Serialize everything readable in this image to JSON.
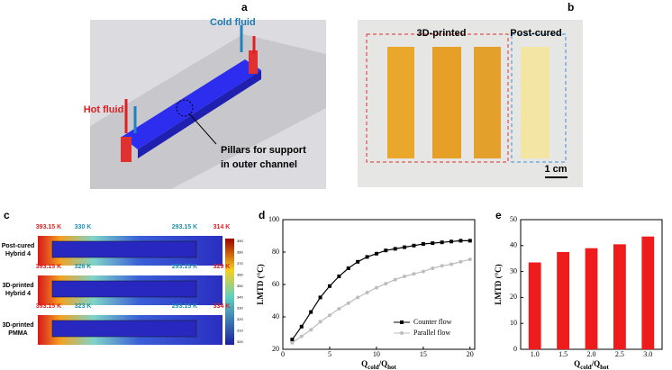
{
  "panel_labels": [
    "a",
    "b",
    "c",
    "d",
    "e"
  ],
  "panel_a": {
    "cold": "Cold fluid",
    "hot": "Hot fluid",
    "pillars": [
      "Pillars for support",
      "in outer channel"
    ]
  },
  "panel_b": {
    "printed": "3D-printed",
    "cured": "Post-cured",
    "scale": "1 cm"
  },
  "panel_c": {
    "rows": [
      {
        "label": [
          "Post-cured",
          "Hybrid 4"
        ],
        "temps": [
          "393.15 K",
          "330 K",
          "293.15 K",
          "314 K"
        ]
      },
      {
        "label": [
          "3D-printed",
          "Hybrid 4"
        ],
        "temps": [
          "393.15 K",
          "326 K",
          "293.15 K",
          "329 K"
        ]
      },
      {
        "label": [
          "3D-printed",
          "PMMA"
        ],
        "temps": [
          "393.15 K",
          "323 K",
          "293.15 K",
          "334 K"
        ]
      }
    ],
    "colorbar_ticks": [
      390,
      380,
      370,
      360,
      350,
      340,
      330,
      320,
      310,
      300
    ]
  },
  "chart_data": [
    {
      "type": "line",
      "ylabel": "LMTD (°C)",
      "xlabel": [
        "Q",
        "cold",
        "/Q",
        "hot"
      ],
      "x": [
        1,
        2,
        3,
        4,
        5,
        6,
        7,
        8,
        9,
        10,
        11,
        12,
        13,
        14,
        15,
        16,
        17,
        18,
        19,
        20
      ],
      "xlim": [
        0,
        20.5
      ],
      "xticks": [
        0,
        5,
        10,
        15,
        20
      ],
      "ylim": [
        20,
        100
      ],
      "yticks": [
        20,
        40,
        60,
        80,
        100
      ],
      "legend": "lower right",
      "series": [
        {
          "name": "Counter flow",
          "color": "#000000",
          "marker": "square",
          "values": [
            26,
            34,
            43,
            52,
            59,
            65,
            70,
            74,
            77,
            79,
            81,
            82,
            83,
            84,
            85,
            85.5,
            86,
            86.5,
            87,
            87
          ]
        },
        {
          "name": "Parallel flow",
          "color": "#bdbdbd",
          "marker": "circle",
          "values": [
            24,
            28,
            32,
            37,
            41,
            45,
            48.5,
            52,
            55,
            58,
            60.5,
            63,
            65,
            66.5,
            68,
            70,
            71.5,
            72.5,
            74,
            75.5
          ]
        }
      ]
    },
    {
      "type": "bar",
      "ylabel": "LMTD (°C)",
      "xlabel": [
        "Q",
        "cold",
        "/Q",
        "hot"
      ],
      "categories": [
        "1.0",
        "1.5",
        "2.0",
        "2.5",
        "3.0"
      ],
      "values": [
        33.5,
        37.5,
        39,
        40.5,
        43.5
      ],
      "color": "#ee1c1c",
      "ylim": [
        0,
        50
      ],
      "yticks": [
        0,
        10,
        20,
        30,
        40,
        50
      ]
    }
  ]
}
